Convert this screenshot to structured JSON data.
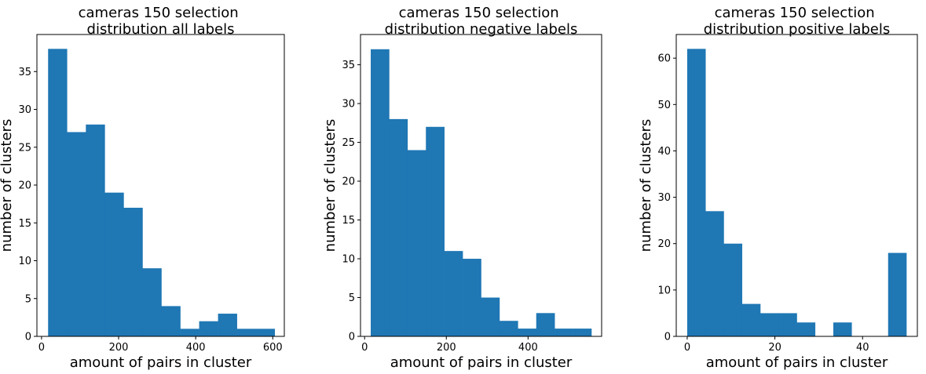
{
  "figure": {
    "bar_color": "#1f77b4",
    "background": "#ffffff"
  },
  "chart_data": [
    {
      "type": "bar",
      "title": "cameras 150 selection\ndistribution all labels",
      "xlabel": "amount of pairs in cluster",
      "ylabel": "number of clusters",
      "xlim": [
        -12,
        630
      ],
      "ylim": [
        0,
        39.9
      ],
      "xticks": [
        0,
        200,
        400,
        600
      ],
      "yticks": [
        0,
        5,
        10,
        15,
        20,
        25,
        30,
        35
      ],
      "bin_edges": [
        17,
        66,
        115,
        164,
        213,
        262,
        311,
        360,
        409,
        458,
        507,
        556,
        605
      ],
      "values": [
        38,
        27,
        28,
        19,
        17,
        9,
        4,
        1,
        2,
        3,
        1,
        1
      ],
      "grid": false
    },
    {
      "type": "bar",
      "title": "cameras 150 selection\ndistribution negative labels",
      "xlabel": "amount of pairs in cluster",
      "ylabel": "number of clusters",
      "xlim": [
        -10,
        580
      ],
      "ylim": [
        0,
        38.9
      ],
      "xticks": [
        0,
        200,
        400
      ],
      "yticks": [
        0,
        5,
        10,
        15,
        20,
        25,
        30,
        35
      ],
      "bin_edges": [
        15,
        60,
        105,
        150,
        195,
        240,
        285,
        330,
        375,
        420,
        465,
        510,
        555
      ],
      "values": [
        37,
        28,
        24,
        27,
        11,
        10,
        5,
        2,
        1,
        3,
        1,
        1
      ],
      "grid": false
    },
    {
      "type": "bar",
      "title": "cameras 150 selection\ndistribution positive labels",
      "xlabel": "amount of pairs in cluster",
      "ylabel": "number of clusters",
      "xlim": [
        -2.5,
        52.5
      ],
      "ylim": [
        0,
        65.1
      ],
      "xticks": [
        0,
        20,
        40
      ],
      "yticks": [
        0,
        10,
        20,
        30,
        40,
        50,
        60
      ],
      "bin_edges": [
        0,
        4.17,
        8.33,
        12.5,
        16.67,
        20.83,
        25,
        29.17,
        33.33,
        37.5,
        41.67,
        45.83,
        50
      ],
      "values": [
        62,
        27,
        20,
        7,
        5,
        5,
        3,
        0,
        3,
        0,
        0,
        18
      ],
      "grid": false
    }
  ]
}
